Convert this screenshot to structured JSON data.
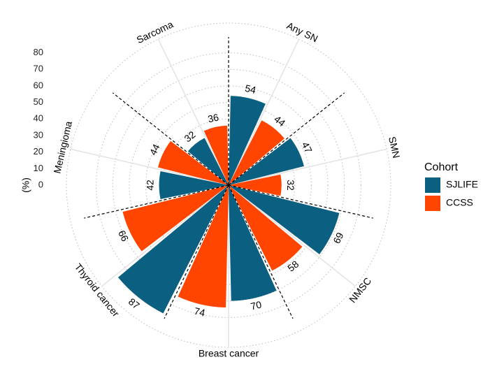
{
  "chart_data": {
    "type": "polar-bar",
    "y_label": "(%)",
    "categories": [
      "Any SN",
      "SMN",
      "NMSC",
      "Breast cancer",
      "Thyroid cancer",
      "Meningioma",
      "Sarcoma"
    ],
    "series": [
      {
        "name": "SJLIFE",
        "color": "#0b5f80",
        "values": [
          54,
          47,
          69,
          70,
          87,
          42,
          32
        ]
      },
      {
        "name": "CCSS",
        "color": "#ff4500",
        "values": [
          44,
          32,
          58,
          74,
          66,
          44,
          36
        ]
      }
    ],
    "ylim": [
      0,
      98
    ],
    "yticks": [
      0,
      10,
      20,
      30,
      40,
      50,
      60,
      70,
      80
    ],
    "legend_title": "Cohort"
  }
}
